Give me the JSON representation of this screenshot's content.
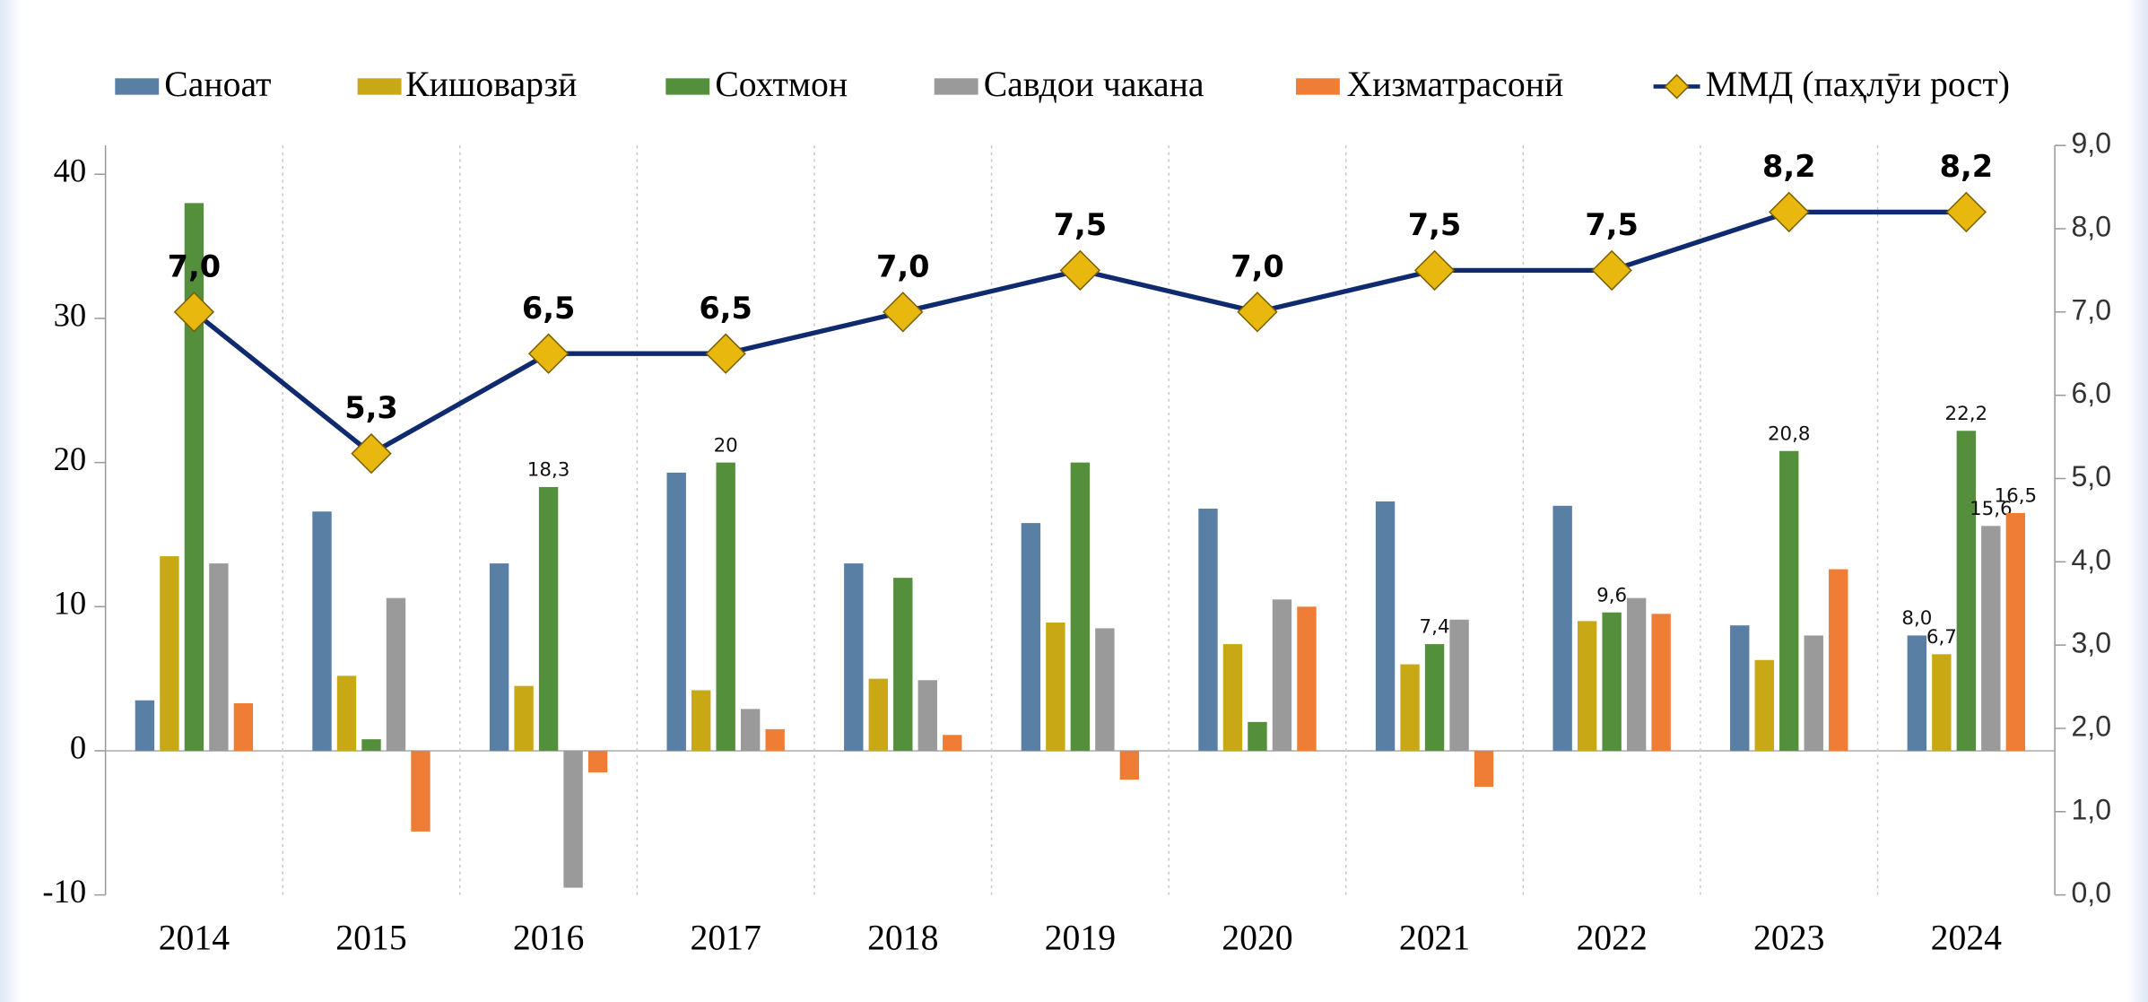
{
  "chart_data": {
    "type": "bar",
    "categories": [
      "2014",
      "2015",
      "2016",
      "2017",
      "2018",
      "2019",
      "2020",
      "2021",
      "2022",
      "2023",
      "2024"
    ],
    "ylim": [
      -10,
      42
    ],
    "yticks": [
      -10,
      0,
      10,
      20,
      30,
      40
    ],
    "y2lim": [
      0,
      9
    ],
    "y2ticks": [
      {
        "value": 0,
        "label": "0,0"
      },
      {
        "value": 1,
        "label": "1,0"
      },
      {
        "value": 2,
        "label": "2,0"
      },
      {
        "value": 3,
        "label": "3,0"
      },
      {
        "value": 4,
        "label": "4,0"
      },
      {
        "value": 5,
        "label": "5,0"
      },
      {
        "value": 6,
        "label": "6,0"
      },
      {
        "value": 7,
        "label": "7,0"
      },
      {
        "value": 8,
        "label": "8,0"
      },
      {
        "value": 9,
        "label": "9,0"
      }
    ],
    "series": [
      {
        "name": "Саноат",
        "color": "#5a7fa5",
        "values": [
          3.5,
          16.6,
          13,
          19.3,
          13,
          15.8,
          16.8,
          17.3,
          17,
          8.7,
          8.0
        ],
        "value_labels": [
          null,
          null,
          null,
          null,
          null,
          null,
          null,
          null,
          null,
          null,
          "8,0"
        ]
      },
      {
        "name": "Кишоварзӣ",
        "color": "#c9a816",
        "values": [
          13.5,
          5.2,
          4.5,
          4.2,
          5,
          8.9,
          7.4,
          6,
          9,
          6.3,
          6.7
        ],
        "value_labels": [
          null,
          null,
          null,
          null,
          null,
          null,
          null,
          null,
          null,
          null,
          "6,7"
        ]
      },
      {
        "name": "Сохтмон",
        "color": "#548f3c",
        "values": [
          38,
          0.8,
          18.3,
          20,
          12,
          20,
          2,
          7.4,
          9.6,
          20.8,
          22.2
        ],
        "value_labels": [
          null,
          null,
          "18,3",
          "20",
          null,
          null,
          null,
          "7,4",
          "9,6",
          "20,8",
          "22,2"
        ]
      },
      {
        "name": "Савдои чакана",
        "color": "#9a9a9a",
        "values": [
          13,
          10.6,
          -9.5,
          2.9,
          4.9,
          8.5,
          10.5,
          9.1,
          10.6,
          8,
          15.6
        ],
        "value_labels": [
          null,
          null,
          null,
          null,
          null,
          null,
          null,
          null,
          null,
          null,
          "15,6"
        ]
      },
      {
        "name": "Хизматрасонӣ",
        "color": "#ef7d35",
        "values": [
          3.3,
          -5.6,
          -1.5,
          1.5,
          1.1,
          -2,
          10,
          -2.5,
          9.5,
          12.6,
          16.5
        ],
        "value_labels": [
          null,
          null,
          null,
          null,
          null,
          null,
          null,
          null,
          null,
          null,
          "16,5"
        ]
      },
      {
        "name": "ММД (паҳлӯи рост)",
        "type": "line",
        "axis": "y2",
        "color": "#0f2a6e",
        "marker_color": "#e8b80e",
        "values": [
          7.0,
          5.3,
          6.5,
          6.5,
          7.0,
          7.5,
          7.0,
          7.5,
          7.5,
          8.2,
          8.2
        ],
        "value_labels": [
          "7,0",
          "5,3",
          "6,5",
          "6,5",
          "7,0",
          "7,5",
          "7,0",
          "7,5",
          "7,5",
          "8,2",
          "8,2"
        ]
      }
    ]
  }
}
